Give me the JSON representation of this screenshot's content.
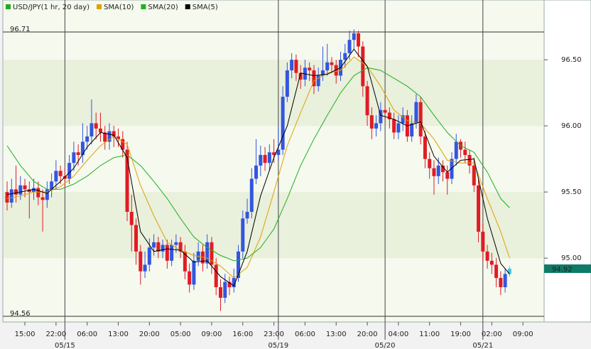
{
  "chart_data": {
    "type": "candlestick",
    "name": "USD/JPY(1 hr, 20 day)",
    "color": "#22aa22",
    "up_color": "#3355e0",
    "down_color": "#e01c24",
    "last_color": "#3ec8e8",
    "categories": [
      null,
      null,
      null,
      null,
      "15:00",
      null,
      null,
      null,
      null,
      null,
      null,
      "22:00",
      null,
      null,
      null,
      null,
      null,
      null,
      "06:00",
      null,
      null,
      null,
      null,
      null,
      null,
      "13:00",
      null,
      null,
      null,
      null,
      null,
      null,
      "20:00",
      null,
      null,
      null,
      null,
      null,
      null,
      "05:00",
      null,
      null,
      null,
      null,
      null,
      null,
      "09:00",
      null,
      null,
      null,
      null,
      null,
      null,
      "16:00",
      null,
      null,
      null,
      null,
      null,
      null,
      "23:00",
      null,
      null,
      null,
      null,
      null,
      null,
      "06:00",
      null,
      null,
      null,
      null,
      null,
      null,
      "13:00",
      null,
      null,
      null,
      null,
      null,
      null,
      "20:00",
      null,
      null,
      null,
      null,
      null,
      null,
      "04:00",
      null,
      null,
      null,
      null,
      null,
      null,
      "11:00",
      null,
      null,
      null,
      null,
      null,
      null,
      "19:00",
      null,
      null,
      null,
      null,
      null,
      null,
      "02:00",
      null,
      null,
      null,
      null,
      null,
      null,
      "09:00"
    ],
    "day_breaks": [
      {
        "index": 13,
        "label": "05/15"
      },
      {
        "index": 61,
        "label": "05/19"
      },
      {
        "index": 85,
        "label": "05/20"
      },
      {
        "index": 107,
        "label": "05/21"
      }
    ],
    "open": [
      95.5,
      95.42,
      95.52,
      95.48,
      95.55,
      95.52,
      95.5,
      95.53,
      95.46,
      95.44,
      95.52,
      95.58,
      95.66,
      95.62,
      95.6,
      95.72,
      95.8,
      95.78,
      95.88,
      95.92,
      96.02,
      95.98,
      95.95,
      95.88,
      95.96,
      95.92,
      95.9,
      95.82,
      95.35,
      95.25,
      95.05,
      94.9,
      94.95,
      95.08,
      95.12,
      95.05,
      95.1,
      94.98,
      95.1,
      95.12,
      95.05,
      94.9,
      94.8,
      94.98,
      95.05,
      94.96,
      95.12,
      94.95,
      94.78,
      94.7,
      94.82,
      94.78,
      94.85,
      95.05,
      95.3,
      95.35,
      95.6,
      95.7,
      95.78,
      95.72,
      95.8,
      95.78,
      95.82,
      96.22,
      96.42,
      96.5,
      96.4,
      96.35,
      96.44,
      96.42,
      96.3,
      96.38,
      96.42,
      96.48,
      96.46,
      96.38,
      96.5,
      96.55,
      96.65,
      96.7,
      96.6,
      96.3,
      96.08,
      95.98,
      96.02,
      96.12,
      96.1,
      96.05,
      95.95,
      96.02,
      96.08,
      95.92,
      96.02,
      96.18,
      95.92,
      95.75,
      95.68,
      95.62,
      95.7,
      95.65,
      95.6,
      95.75,
      95.88,
      95.82,
      95.78,
      95.7,
      95.55,
      95.2,
      95.05,
      94.98,
      94.95,
      94.85,
      94.78,
      94.88,
      null,
      null,
      null
    ],
    "high": [
      95.58,
      95.6,
      95.7,
      95.62,
      95.6,
      95.58,
      95.6,
      95.58,
      95.52,
      95.58,
      95.64,
      95.74,
      95.7,
      95.68,
      95.78,
      95.88,
      95.86,
      96.02,
      96.0,
      96.2,
      96.1,
      96.1,
      96.0,
      96.02,
      96.0,
      95.98,
      95.96,
      95.88,
      95.48,
      95.3,
      95.1,
      95.05,
      95.15,
      95.18,
      95.16,
      95.14,
      95.14,
      95.14,
      95.18,
      95.16,
      95.1,
      94.96,
      95.04,
      95.12,
      95.1,
      95.18,
      95.16,
      95.0,
      94.84,
      94.88,
      94.86,
      94.92,
      95.1,
      95.36,
      95.45,
      95.68,
      95.9,
      95.85,
      95.84,
      95.86,
      95.9,
      96.0,
      96.3,
      96.48,
      96.55,
      96.54,
      96.46,
      96.5,
      96.48,
      96.46,
      96.44,
      96.6,
      96.62,
      96.52,
      96.5,
      96.56,
      96.62,
      96.72,
      96.73,
      96.72,
      96.64,
      96.34,
      96.14,
      96.08,
      96.18,
      96.16,
      96.14,
      96.1,
      96.08,
      96.14,
      96.12,
      96.08,
      96.24,
      96.22,
      95.96,
      95.8,
      95.74,
      95.76,
      95.74,
      95.7,
      95.8,
      95.94,
      95.9,
      95.88,
      95.82,
      95.76,
      95.6,
      95.26,
      95.1,
      95.04,
      95.0,
      94.9,
      94.92,
      94.94,
      null,
      null,
      null
    ],
    "low": [
      95.36,
      95.38,
      95.42,
      95.44,
      95.46,
      95.3,
      95.44,
      95.4,
      95.2,
      95.38,
      95.46,
      95.52,
      95.56,
      95.54,
      95.56,
      95.66,
      95.7,
      95.72,
      95.82,
      95.86,
      95.9,
      95.88,
      95.82,
      95.82,
      95.84,
      95.84,
      95.76,
      95.28,
      95.05,
      94.95,
      94.8,
      94.85,
      94.9,
      95.02,
      95.0,
      95.0,
      94.92,
      94.94,
      95.04,
      95.0,
      94.84,
      94.74,
      94.76,
      94.94,
      94.9,
      94.92,
      94.88,
      94.72,
      94.6,
      94.66,
      94.72,
      94.74,
      94.82,
      95.0,
      95.26,
      95.3,
      95.56,
      95.62,
      95.66,
      95.66,
      95.72,
      95.74,
      95.78,
      96.18,
      96.36,
      96.34,
      96.28,
      96.3,
      96.34,
      96.24,
      96.26,
      96.34,
      96.38,
      96.4,
      96.32,
      96.34,
      96.44,
      96.5,
      96.58,
      96.52,
      96.22,
      96.0,
      95.9,
      95.92,
      95.96,
      96.04,
      95.98,
      95.9,
      95.9,
      95.96,
      95.88,
      95.88,
      95.98,
      95.86,
      95.68,
      95.6,
      95.48,
      95.56,
      95.58,
      95.48,
      95.56,
      95.7,
      95.76,
      95.72,
      95.64,
      95.5,
      95.12,
      94.98,
      94.92,
      94.88,
      94.78,
      94.72,
      94.74,
      94.86,
      null,
      null,
      null
    ],
    "close": [
      95.42,
      95.52,
      95.48,
      95.55,
      95.52,
      95.5,
      95.53,
      95.46,
      95.44,
      95.52,
      95.58,
      95.66,
      95.62,
      95.6,
      95.72,
      95.8,
      95.78,
      95.88,
      95.92,
      96.02,
      95.98,
      95.95,
      95.88,
      95.96,
      95.92,
      95.9,
      95.82,
      95.35,
      95.25,
      95.05,
      94.9,
      94.95,
      95.08,
      95.12,
      95.05,
      95.1,
      94.98,
      95.1,
      95.12,
      95.05,
      94.9,
      94.8,
      94.98,
      95.05,
      94.96,
      95.12,
      94.95,
      94.78,
      94.7,
      94.82,
      94.78,
      94.85,
      95.05,
      95.3,
      95.35,
      95.6,
      95.7,
      95.78,
      95.72,
      95.8,
      95.78,
      95.82,
      96.22,
      96.42,
      96.5,
      96.4,
      96.35,
      96.44,
      96.42,
      96.3,
      96.38,
      96.42,
      96.48,
      96.46,
      96.38,
      96.5,
      96.55,
      96.65,
      96.7,
      96.6,
      96.3,
      96.08,
      95.98,
      96.02,
      96.12,
      96.1,
      96.05,
      95.95,
      96.02,
      96.08,
      95.92,
      96.02,
      96.18,
      95.92,
      95.75,
      95.68,
      95.62,
      95.7,
      95.65,
      95.6,
      95.75,
      95.88,
      95.82,
      95.78,
      95.7,
      95.55,
      95.2,
      95.05,
      94.98,
      94.95,
      94.85,
      94.78,
      94.88,
      94.92,
      null,
      null,
      null
    ],
    "series": [
      {
        "name": "SMA(10)",
        "color": "#e0a000",
        "x": [
          0,
          3,
          6,
          9,
          12,
          15,
          18,
          21,
          24,
          27,
          30,
          33,
          36,
          39,
          42,
          45,
          48,
          51,
          54,
          57,
          60,
          63,
          66,
          69,
          72,
          75,
          78,
          81,
          84,
          87,
          90,
          93,
          96,
          99,
          102,
          105,
          108,
          111,
          113
        ],
        "values": [
          95.45,
          95.47,
          95.5,
          95.5,
          95.54,
          95.62,
          95.74,
          95.85,
          95.92,
          95.86,
          95.55,
          95.32,
          95.12,
          95.06,
          95.02,
          95.0,
          94.94,
          94.85,
          94.93,
          95.16,
          95.5,
          95.85,
          96.1,
          96.34,
          96.4,
          96.42,
          96.52,
          96.45,
          96.3,
          96.12,
          96.04,
          96.02,
          95.9,
          95.74,
          95.72,
          95.72,
          95.45,
          95.2,
          95.0
        ]
      },
      {
        "name": "SMA(20)",
        "color": "#20b020",
        "x": [
          0,
          3,
          6,
          9,
          12,
          15,
          18,
          21,
          24,
          27,
          30,
          33,
          36,
          39,
          42,
          45,
          48,
          51,
          54,
          57,
          60,
          63,
          66,
          69,
          72,
          75,
          78,
          81,
          84,
          87,
          90,
          93,
          96,
          99,
          102,
          105,
          108,
          111,
          113
        ],
        "values": [
          95.85,
          95.7,
          95.58,
          95.52,
          95.52,
          95.56,
          95.62,
          95.7,
          95.76,
          95.78,
          95.7,
          95.58,
          95.45,
          95.3,
          95.16,
          95.08,
          95.02,
          94.98,
          95.0,
          95.08,
          95.22,
          95.45,
          95.7,
          95.9,
          96.08,
          96.25,
          96.38,
          96.44,
          96.42,
          96.36,
          96.3,
          96.22,
          96.08,
          95.95,
          95.85,
          95.8,
          95.65,
          95.45,
          95.38
        ]
      },
      {
        "name": "SMA(5)",
        "color": "#000000",
        "x": [
          0,
          3,
          6,
          9,
          12,
          15,
          18,
          21,
          24,
          27,
          30,
          33,
          36,
          39,
          42,
          45,
          48,
          51,
          54,
          57,
          60,
          63,
          66,
          69,
          72,
          75,
          78,
          81,
          84,
          87,
          90,
          93,
          96,
          99,
          102,
          105,
          108,
          111,
          113
        ],
        "values": [
          95.48,
          95.5,
          95.52,
          95.49,
          95.58,
          95.68,
          95.84,
          95.95,
          95.93,
          95.76,
          95.2,
          95.05,
          95.07,
          95.06,
          94.97,
          94.98,
          94.86,
          94.79,
          95.05,
          95.47,
          95.76,
          96.0,
          96.4,
          96.38,
          96.39,
          96.44,
          96.58,
          96.45,
          96.08,
          96.05,
          96.0,
          96.03,
          95.77,
          95.65,
          95.74,
          95.75,
          95.3,
          94.96,
          94.88
        ]
      }
    ],
    "ylim": [
      94.56,
      96.71
    ],
    "yticks": [
      {
        "value": 95.0,
        "label": "95.00"
      },
      {
        "value": 95.5,
        "label": "95.50"
      },
      {
        "value": 96.0,
        "label": "96.00"
      },
      {
        "value": 96.5,
        "label": "96.50"
      }
    ],
    "last_price": 94.92,
    "last_price_color": "#0e7a68"
  }
}
